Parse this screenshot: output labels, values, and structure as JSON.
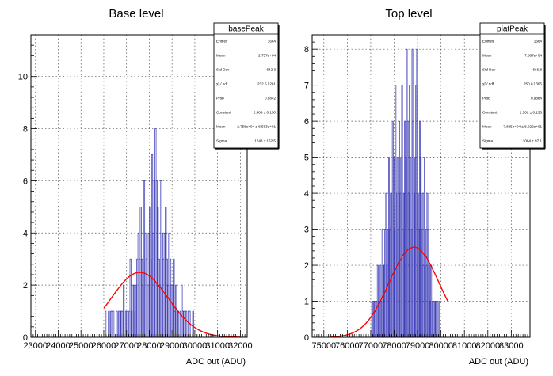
{
  "chart_data": [
    {
      "type": "bar",
      "title": "Base level",
      "xlabel": "ADC out (ADU)",
      "ylabel": "",
      "xlim": [
        22800,
        32300
      ],
      "ylim": [
        0,
        11.6
      ],
      "x_ticks": [
        23000,
        24000,
        25000,
        26000,
        27000,
        28000,
        29000,
        30000,
        31000,
        32000
      ],
      "y_ticks": [
        0,
        2,
        4,
        6,
        8,
        10
      ],
      "grid": true,
      "legend_position": "top-right",
      "bin_width": 50,
      "bin_start": 26000,
      "series": [
        {
          "values": [
            0,
            1,
            0,
            0,
            1,
            0,
            1,
            1,
            1,
            0,
            0,
            1,
            0,
            1,
            1,
            1,
            1,
            2,
            0,
            1,
            1,
            0,
            1,
            3,
            1,
            2,
            2,
            1,
            2,
            3,
            4,
            3,
            5,
            3,
            2,
            6,
            4,
            3,
            2,
            4,
            5,
            3,
            7,
            4,
            6,
            8,
            6,
            5,
            3,
            2,
            6,
            4,
            3,
            4,
            5,
            3,
            2,
            4,
            3,
            2,
            2,
            3,
            1,
            2,
            1,
            1,
            0,
            1,
            2,
            1,
            1,
            0,
            1,
            0,
            1,
            1,
            0,
            0,
            1
          ]
        }
      ],
      "fit": {
        "constant": 2.489,
        "mean": 27580,
        "sigma": 1243,
        "x_range": [
          26000,
          32000
        ]
      },
      "stats": {
        "name": "basePeak",
        "rows": [
          {
            "label": "Entries",
            "value": "1664"
          },
          {
            "label": "Mean",
            "value": "2.757e+04"
          },
          {
            "label": "Std Dev",
            "value": "642.3"
          },
          {
            "label": "χ² / ndf",
            "value": "232.5 / 261"
          },
          {
            "label": "Prob",
            "value": "0.9842"
          },
          {
            "label": "Constant",
            "value": "2.489 ± 0.150"
          },
          {
            "label": "Mean",
            "value": "2.758e+04 ± 8.583e+01"
          },
          {
            "label": "Sigma",
            "value": "1243 ± 152.5"
          }
        ]
      }
    },
    {
      "type": "bar",
      "title": "Top level",
      "xlabel": "ADC out (ADU)",
      "ylabel": "",
      "xlim": [
        74500,
        83800
      ],
      "ylim": [
        0,
        8.4
      ],
      "x_ticks": [
        75000,
        76000,
        77000,
        78000,
        79000,
        80000,
        81000,
        82000,
        83000
      ],
      "y_ticks": [
        0,
        1,
        2,
        3,
        4,
        5,
        6,
        7,
        8
      ],
      "grid": true,
      "legend_position": "top-right",
      "bin_width": 40,
      "bin_start": 77000,
      "series": [
        {
          "values": [
            0,
            1,
            0,
            1,
            1,
            0,
            1,
            2,
            1,
            1,
            2,
            1,
            3,
            2,
            2,
            3,
            4,
            2,
            3,
            5,
            3,
            4,
            4,
            6,
            5,
            3,
            7,
            4,
            5,
            3,
            6,
            4,
            5,
            7,
            3,
            4,
            6,
            5,
            8,
            6,
            4,
            7,
            5,
            3,
            8,
            6,
            4,
            5,
            7,
            8,
            4,
            3,
            6,
            5,
            3,
            4,
            2,
            5,
            3,
            2,
            4,
            3,
            2,
            1,
            2,
            1,
            1,
            0,
            1,
            1,
            0,
            1,
            0,
            1
          ]
        }
      ],
      "fit": {
        "constant": 2.502,
        "mean": 78850,
        "sigma": 1064,
        "x_range": [
          75300,
          80300
        ]
      },
      "stats": {
        "name": "platPeak",
        "rows": [
          {
            "label": "Entries",
            "value": "1664"
          },
          {
            "label": "Mean",
            "value": "7.867e+04"
          },
          {
            "label": "Std Dev",
            "value": "666.8"
          },
          {
            "label": "χ² / ndf",
            "value": "250.8 / 305"
          },
          {
            "label": "Prob",
            "value": "0.9884"
          },
          {
            "label": "Constant",
            "value": "2.502 ± 0.136"
          },
          {
            "label": "Mean",
            "value": "7.885e+04 ± 8.922e+01"
          },
          {
            "label": "Sigma",
            "value": "1064 ± 97.1"
          }
        ]
      }
    }
  ],
  "colors": {
    "histogram": "#3131b4",
    "fit": "#ff0000",
    "grid": "#555555",
    "frame": "#000000"
  }
}
